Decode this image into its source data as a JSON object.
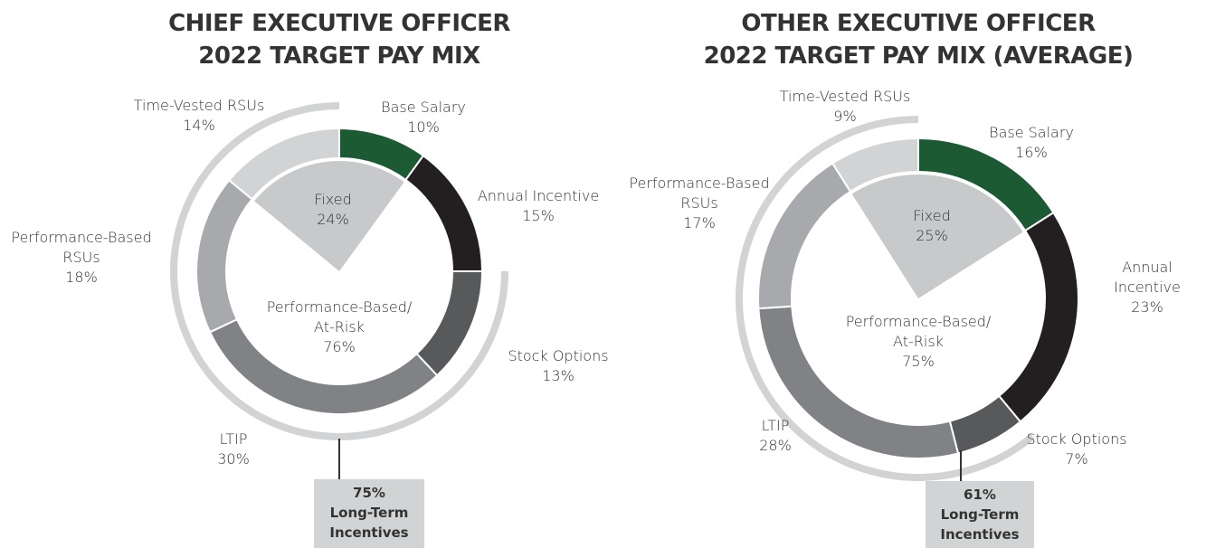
{
  "chart_data": [
    {
      "type": "donut",
      "title": "CHIEF EXECUTIVE OFFICER\n2022 TARGET PAY MIX",
      "categories": [
        "Base Salary",
        "Annual Incentive",
        "Stock Options",
        "LTIP",
        "Performance-Based\nRSUs",
        "Time-Vested RSUs"
      ],
      "values": [
        10,
        15,
        13,
        30,
        18,
        14
      ],
      "value_labels": [
        "10%",
        "15%",
        "13%",
        "30%",
        "18%",
        "14%"
      ],
      "colors": [
        "#1b5a32",
        "#231f20",
        "#58595b",
        "#808285",
        "#a7a9ac",
        "#d1d3d4"
      ],
      "groups": [
        {
          "name": "Fixed",
          "value": 24,
          "value_label": "24%",
          "color": "#c8c9cb"
        },
        {
          "name": "Performance-Based/\nAt-Risk",
          "value": 76,
          "value_label": "76%"
        }
      ],
      "long_term": {
        "name": "Long-Term\nIncentives",
        "value": 75,
        "value_label": "75%",
        "color": "#d1d3d4"
      }
    },
    {
      "type": "donut",
      "title": "OTHER EXECUTIVE OFFICER\n2022 TARGET PAY MIX (AVERAGE)",
      "categories": [
        "Base Salary",
        "Annual Incentive",
        "Stock Options",
        "LTIP",
        "Performance-Based\nRSUs",
        "Time-Vested RSUs"
      ],
      "values": [
        16,
        23,
        7,
        28,
        17,
        9
      ],
      "value_labels": [
        "16%",
        "23%",
        "7%",
        "28%",
        "17%",
        "9%"
      ],
      "colors": [
        "#1b5a32",
        "#231f20",
        "#58595b",
        "#808285",
        "#a7a9ac",
        "#d1d3d4"
      ],
      "groups": [
        {
          "name": "Fixed",
          "value": 25,
          "value_label": "25%",
          "color": "#c8c9cb"
        },
        {
          "name": "Performance-Based/\nAt-Risk",
          "value": 75,
          "value_label": "75%"
        }
      ],
      "long_term": {
        "name": "Long-Term\nIncentives",
        "value": 61,
        "value_label": "61%",
        "color": "#d1d3d4"
      }
    }
  ]
}
